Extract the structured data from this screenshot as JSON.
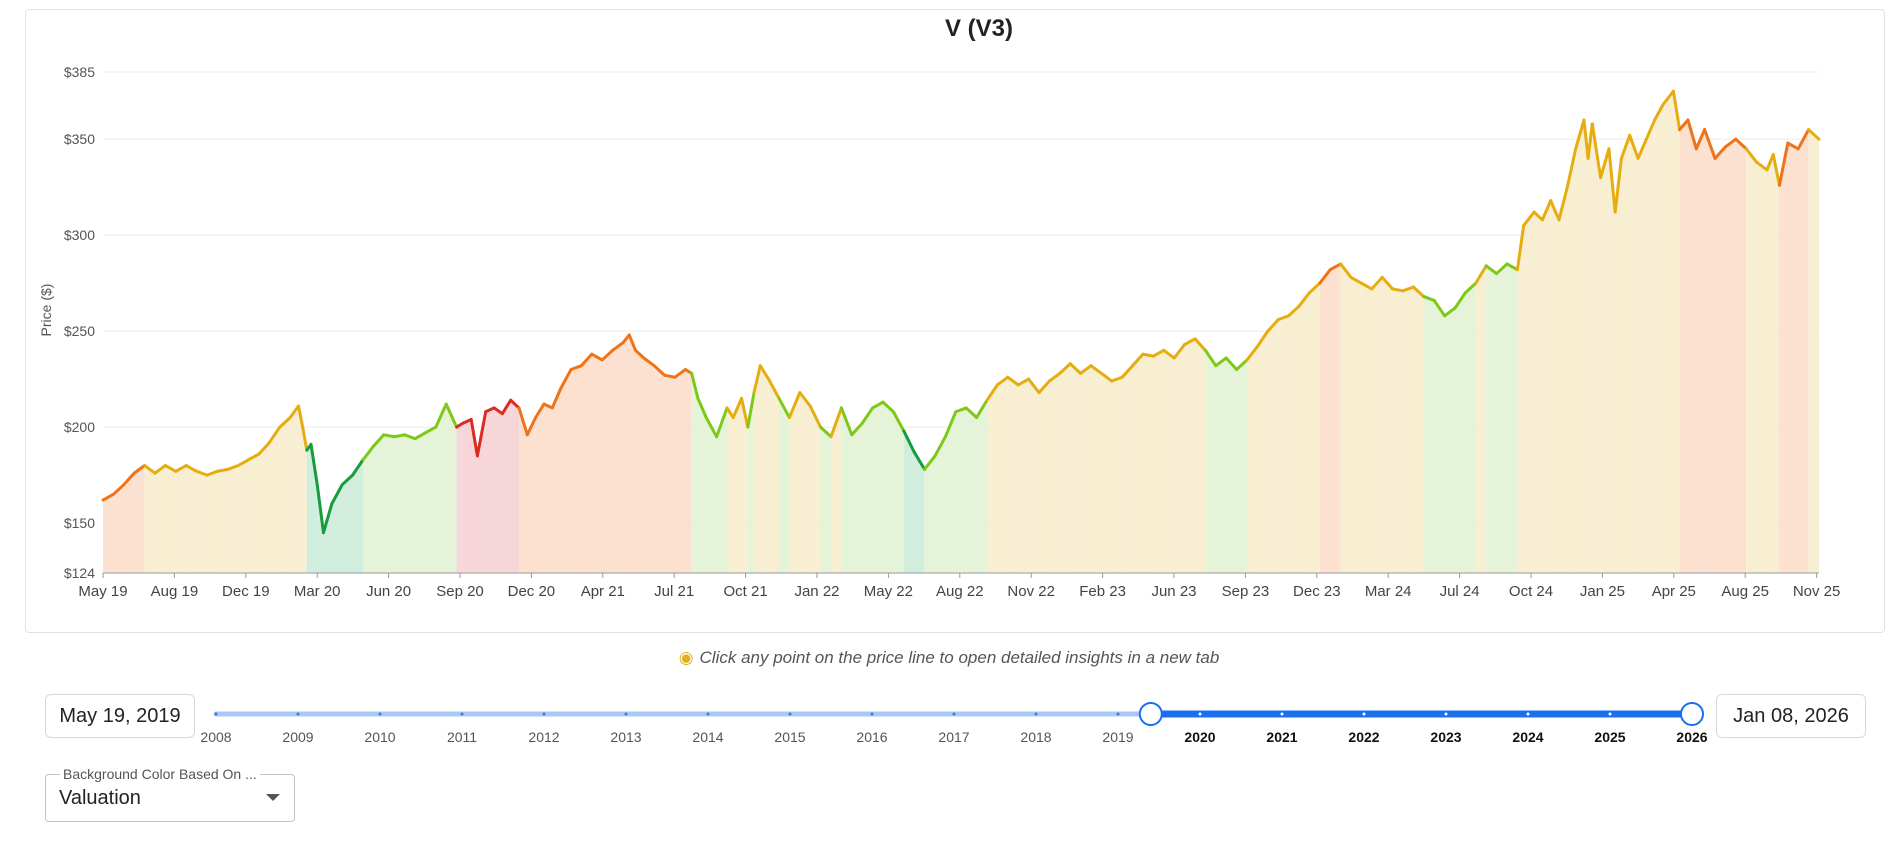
{
  "chart_data": {
    "type": "line",
    "title": "V (V3)",
    "xlabel": "",
    "ylabel": "Price ($)",
    "ylim": [
      124,
      385
    ],
    "yticks": [
      {
        "v": 385,
        "label": "$385"
      },
      {
        "v": 350,
        "label": "$350"
      },
      {
        "v": 300,
        "label": "$300"
      },
      {
        "v": 250,
        "label": "$250"
      },
      {
        "v": 200,
        "label": "$200"
      },
      {
        "v": 150,
        "label": "$150"
      },
      {
        "v": 124,
        "label": "$124"
      }
    ],
    "xticks": [
      "May 19",
      "Aug 19",
      "Dec 19",
      "Mar 20",
      "Jun 20",
      "Sep 20",
      "Dec 20",
      "Apr 21",
      "Jul 21",
      "Oct 21",
      "Jan 22",
      "May 22",
      "Aug 22",
      "Nov 22",
      "Feb 23",
      "Jun 23",
      "Sep 23",
      "Dec 23",
      "Mar 24",
      "Jul 24",
      "Oct 24",
      "Jan 25",
      "Apr 25",
      "Aug 25",
      "Nov 25"
    ],
    "xlim": [
      0,
      80
    ],
    "valuation_colors": {
      "deep_under": "#169c3c",
      "under": "#7ec917",
      "fair": "#e6ad10",
      "over": "#f07318",
      "deep_over": "#dd2a25"
    },
    "background_colors": {
      "deep_under": "#c9ead8",
      "under": "#e0f2d2",
      "fair": "#f7eccb",
      "over": "#fbdac8",
      "deep_over": "#f6cfd3"
    },
    "series": [
      {
        "name": "Price",
        "points": [
          [
            0.0,
            162,
            "over"
          ],
          [
            0.5,
            165,
            "over"
          ],
          [
            1.0,
            170,
            "over"
          ],
          [
            1.5,
            176,
            "over"
          ],
          [
            2.0,
            180,
            "over"
          ],
          [
            2.5,
            176,
            "fair"
          ],
          [
            3.0,
            180,
            "fair"
          ],
          [
            3.5,
            177,
            "fair"
          ],
          [
            4.0,
            180,
            "fair"
          ],
          [
            4.5,
            177,
            "fair"
          ],
          [
            5.0,
            175,
            "fair"
          ],
          [
            5.5,
            177,
            "fair"
          ],
          [
            6.0,
            178,
            "fair"
          ],
          [
            6.5,
            180,
            "fair"
          ],
          [
            7.0,
            183,
            "fair"
          ],
          [
            7.5,
            186,
            "fair"
          ],
          [
            8.0,
            192,
            "fair"
          ],
          [
            8.5,
            200,
            "fair"
          ],
          [
            9.0,
            205,
            "fair"
          ],
          [
            9.4,
            211,
            "fair"
          ],
          [
            9.6,
            200,
            "fair"
          ],
          [
            9.8,
            188,
            "fair"
          ],
          [
            10.0,
            191,
            "deep_under"
          ],
          [
            10.3,
            170,
            "deep_under"
          ],
          [
            10.6,
            145,
            "deep_under"
          ],
          [
            11.0,
            160,
            "deep_under"
          ],
          [
            11.5,
            170,
            "deep_under"
          ],
          [
            12.0,
            175,
            "deep_under"
          ],
          [
            12.5,
            183,
            "deep_under"
          ],
          [
            13.0,
            190,
            "under"
          ],
          [
            13.5,
            196,
            "under"
          ],
          [
            14.0,
            195,
            "under"
          ],
          [
            14.5,
            196,
            "under"
          ],
          [
            15.0,
            194,
            "under"
          ],
          [
            15.5,
            197,
            "under"
          ],
          [
            16.0,
            200,
            "under"
          ],
          [
            16.5,
            212,
            "under"
          ],
          [
            17.0,
            200,
            "under"
          ],
          [
            17.3,
            202,
            "deep_over"
          ],
          [
            17.7,
            204,
            "deep_over"
          ],
          [
            18.0,
            185,
            "deep_over"
          ],
          [
            18.4,
            208,
            "deep_over"
          ],
          [
            18.8,
            210,
            "deep_over"
          ],
          [
            19.2,
            207,
            "deep_over"
          ],
          [
            19.6,
            214,
            "deep_over"
          ],
          [
            20.0,
            210,
            "deep_over"
          ],
          [
            20.4,
            196,
            "over"
          ],
          [
            20.8,
            205,
            "over"
          ],
          [
            21.2,
            212,
            "over"
          ],
          [
            21.6,
            210,
            "over"
          ],
          [
            22.0,
            220,
            "over"
          ],
          [
            22.5,
            230,
            "over"
          ],
          [
            23.0,
            232,
            "over"
          ],
          [
            23.5,
            238,
            "over"
          ],
          [
            24.0,
            235,
            "over"
          ],
          [
            24.5,
            240,
            "over"
          ],
          [
            25.0,
            244,
            "over"
          ],
          [
            25.3,
            248,
            "over"
          ],
          [
            25.6,
            240,
            "over"
          ],
          [
            26.0,
            236,
            "over"
          ],
          [
            26.5,
            232,
            "over"
          ],
          [
            27.0,
            227,
            "over"
          ],
          [
            27.5,
            226,
            "over"
          ],
          [
            28.0,
            230,
            "over"
          ],
          [
            28.3,
            228,
            "over"
          ],
          [
            28.6,
            215,
            "under"
          ],
          [
            29.0,
            205,
            "under"
          ],
          [
            29.5,
            195,
            "under"
          ],
          [
            30.0,
            210,
            "under"
          ],
          [
            30.3,
            205,
            "fair"
          ],
          [
            30.7,
            215,
            "fair"
          ],
          [
            31.0,
            200,
            "fair"
          ],
          [
            31.3,
            218,
            "under"
          ],
          [
            31.6,
            232,
            "fair"
          ],
          [
            32.0,
            225,
            "fair"
          ],
          [
            32.5,
            215,
            "fair"
          ],
          [
            33.0,
            205,
            "under"
          ],
          [
            33.5,
            218,
            "fair"
          ],
          [
            34.0,
            211,
            "fair"
          ],
          [
            34.5,
            200,
            "fair"
          ],
          [
            35.0,
            195,
            "under"
          ],
          [
            35.5,
            210,
            "fair"
          ],
          [
            36.0,
            196,
            "under"
          ],
          [
            36.5,
            202,
            "under"
          ],
          [
            37.0,
            210,
            "under"
          ],
          [
            37.5,
            213,
            "under"
          ],
          [
            38.0,
            208,
            "under"
          ],
          [
            38.5,
            198,
            "under"
          ],
          [
            39.0,
            187,
            "deep_under"
          ],
          [
            39.5,
            178,
            "deep_under"
          ],
          [
            40.0,
            185,
            "under"
          ],
          [
            40.5,
            195,
            "under"
          ],
          [
            41.0,
            208,
            "under"
          ],
          [
            41.5,
            210,
            "under"
          ],
          [
            42.0,
            205,
            "under"
          ],
          [
            42.5,
            214,
            "under"
          ],
          [
            43.0,
            222,
            "fair"
          ],
          [
            43.5,
            226,
            "fair"
          ],
          [
            44.0,
            222,
            "fair"
          ],
          [
            44.5,
            225,
            "fair"
          ],
          [
            45.0,
            218,
            "fair"
          ],
          [
            45.5,
            224,
            "fair"
          ],
          [
            46.0,
            228,
            "fair"
          ],
          [
            46.5,
            233,
            "fair"
          ],
          [
            47.0,
            228,
            "fair"
          ],
          [
            47.5,
            232,
            "fair"
          ],
          [
            48.0,
            228,
            "fair"
          ],
          [
            48.5,
            224,
            "fair"
          ],
          [
            49.0,
            226,
            "fair"
          ],
          [
            49.5,
            232,
            "fair"
          ],
          [
            50.0,
            238,
            "fair"
          ],
          [
            50.5,
            237,
            "fair"
          ],
          [
            51.0,
            240,
            "fair"
          ],
          [
            51.5,
            236,
            "fair"
          ],
          [
            52.0,
            243,
            "fair"
          ],
          [
            52.5,
            246,
            "fair"
          ],
          [
            53.0,
            240,
            "fair"
          ],
          [
            53.5,
            232,
            "under"
          ],
          [
            54.0,
            236,
            "under"
          ],
          [
            54.5,
            230,
            "under"
          ],
          [
            55.0,
            235,
            "under"
          ],
          [
            55.5,
            242,
            "fair"
          ],
          [
            56.0,
            250,
            "fair"
          ],
          [
            56.5,
            256,
            "fair"
          ],
          [
            57.0,
            258,
            "fair"
          ],
          [
            57.5,
            263,
            "fair"
          ],
          [
            58.0,
            270,
            "fair"
          ],
          [
            58.5,
            275,
            "fair"
          ],
          [
            59.0,
            282,
            "over"
          ],
          [
            59.5,
            285,
            "over"
          ],
          [
            60.0,
            278,
            "fair"
          ],
          [
            60.5,
            275,
            "fair"
          ],
          [
            61.0,
            272,
            "fair"
          ],
          [
            61.5,
            278,
            "fair"
          ],
          [
            62.0,
            272,
            "fair"
          ],
          [
            62.5,
            271,
            "fair"
          ],
          [
            63.0,
            273,
            "fair"
          ],
          [
            63.5,
            268,
            "fair"
          ],
          [
            64.0,
            266,
            "under"
          ],
          [
            64.5,
            258,
            "under"
          ],
          [
            65.0,
            262,
            "under"
          ],
          [
            65.5,
            270,
            "under"
          ],
          [
            66.0,
            275,
            "under"
          ],
          [
            66.5,
            284,
            "fair"
          ],
          [
            67.0,
            280,
            "under"
          ],
          [
            67.5,
            285,
            "under"
          ],
          [
            68.0,
            282,
            "under"
          ],
          [
            68.3,
            305,
            "fair"
          ],
          [
            68.8,
            312,
            "fair"
          ],
          [
            69.2,
            308,
            "fair"
          ],
          [
            69.6,
            318,
            "fair"
          ],
          [
            70.0,
            308,
            "fair"
          ],
          [
            70.4,
            325,
            "fair"
          ],
          [
            70.8,
            345,
            "fair"
          ],
          [
            71.2,
            360,
            "fair"
          ],
          [
            71.4,
            340,
            "fair"
          ],
          [
            71.6,
            358,
            "fair"
          ],
          [
            72.0,
            330,
            "fair"
          ],
          [
            72.4,
            345,
            "fair"
          ],
          [
            72.7,
            312,
            "fair"
          ],
          [
            73.0,
            340,
            "fair"
          ],
          [
            73.4,
            352,
            "fair"
          ],
          [
            73.8,
            340,
            "fair"
          ],
          [
            74.2,
            350,
            "fair"
          ],
          [
            74.6,
            360,
            "fair"
          ],
          [
            75.0,
            368,
            "fair"
          ],
          [
            75.5,
            375,
            "fair"
          ],
          [
            75.8,
            355,
            "fair"
          ],
          [
            76.2,
            360,
            "over"
          ],
          [
            76.6,
            345,
            "over"
          ],
          [
            77.0,
            355,
            "over"
          ],
          [
            77.5,
            340,
            "over"
          ],
          [
            78.0,
            346,
            "over"
          ],
          [
            78.5,
            350,
            "over"
          ],
          [
            79.0,
            345,
            "over"
          ],
          [
            79.5,
            338,
            "fair"
          ],
          [
            80.0,
            334,
            "fair"
          ],
          [
            80.3,
            342,
            "fair"
          ],
          [
            80.6,
            326,
            "fair"
          ],
          [
            81.0,
            348,
            "over"
          ],
          [
            81.5,
            345,
            "over"
          ],
          [
            82.0,
            355,
            "over"
          ],
          [
            82.5,
            350,
            "fair"
          ]
        ]
      }
    ]
  },
  "hint": {
    "text": "Click any point on the price line to open detailed insights in a new tab"
  },
  "range": {
    "start_label": "May 19, 2019",
    "end_label": "Jan 08, 2026",
    "years": [
      "2008",
      "2009",
      "2010",
      "2011",
      "2012",
      "2013",
      "2014",
      "2015",
      "2016",
      "2017",
      "2018",
      "2019",
      "2020",
      "2021",
      "2022",
      "2023",
      "2024",
      "2025",
      "2026"
    ],
    "selected_from": 2019.4,
    "selected_to": 2026
  },
  "background_select": {
    "label": "Background Color Based On ...",
    "value": "Valuation"
  },
  "accent_color": "#1a6ef0"
}
